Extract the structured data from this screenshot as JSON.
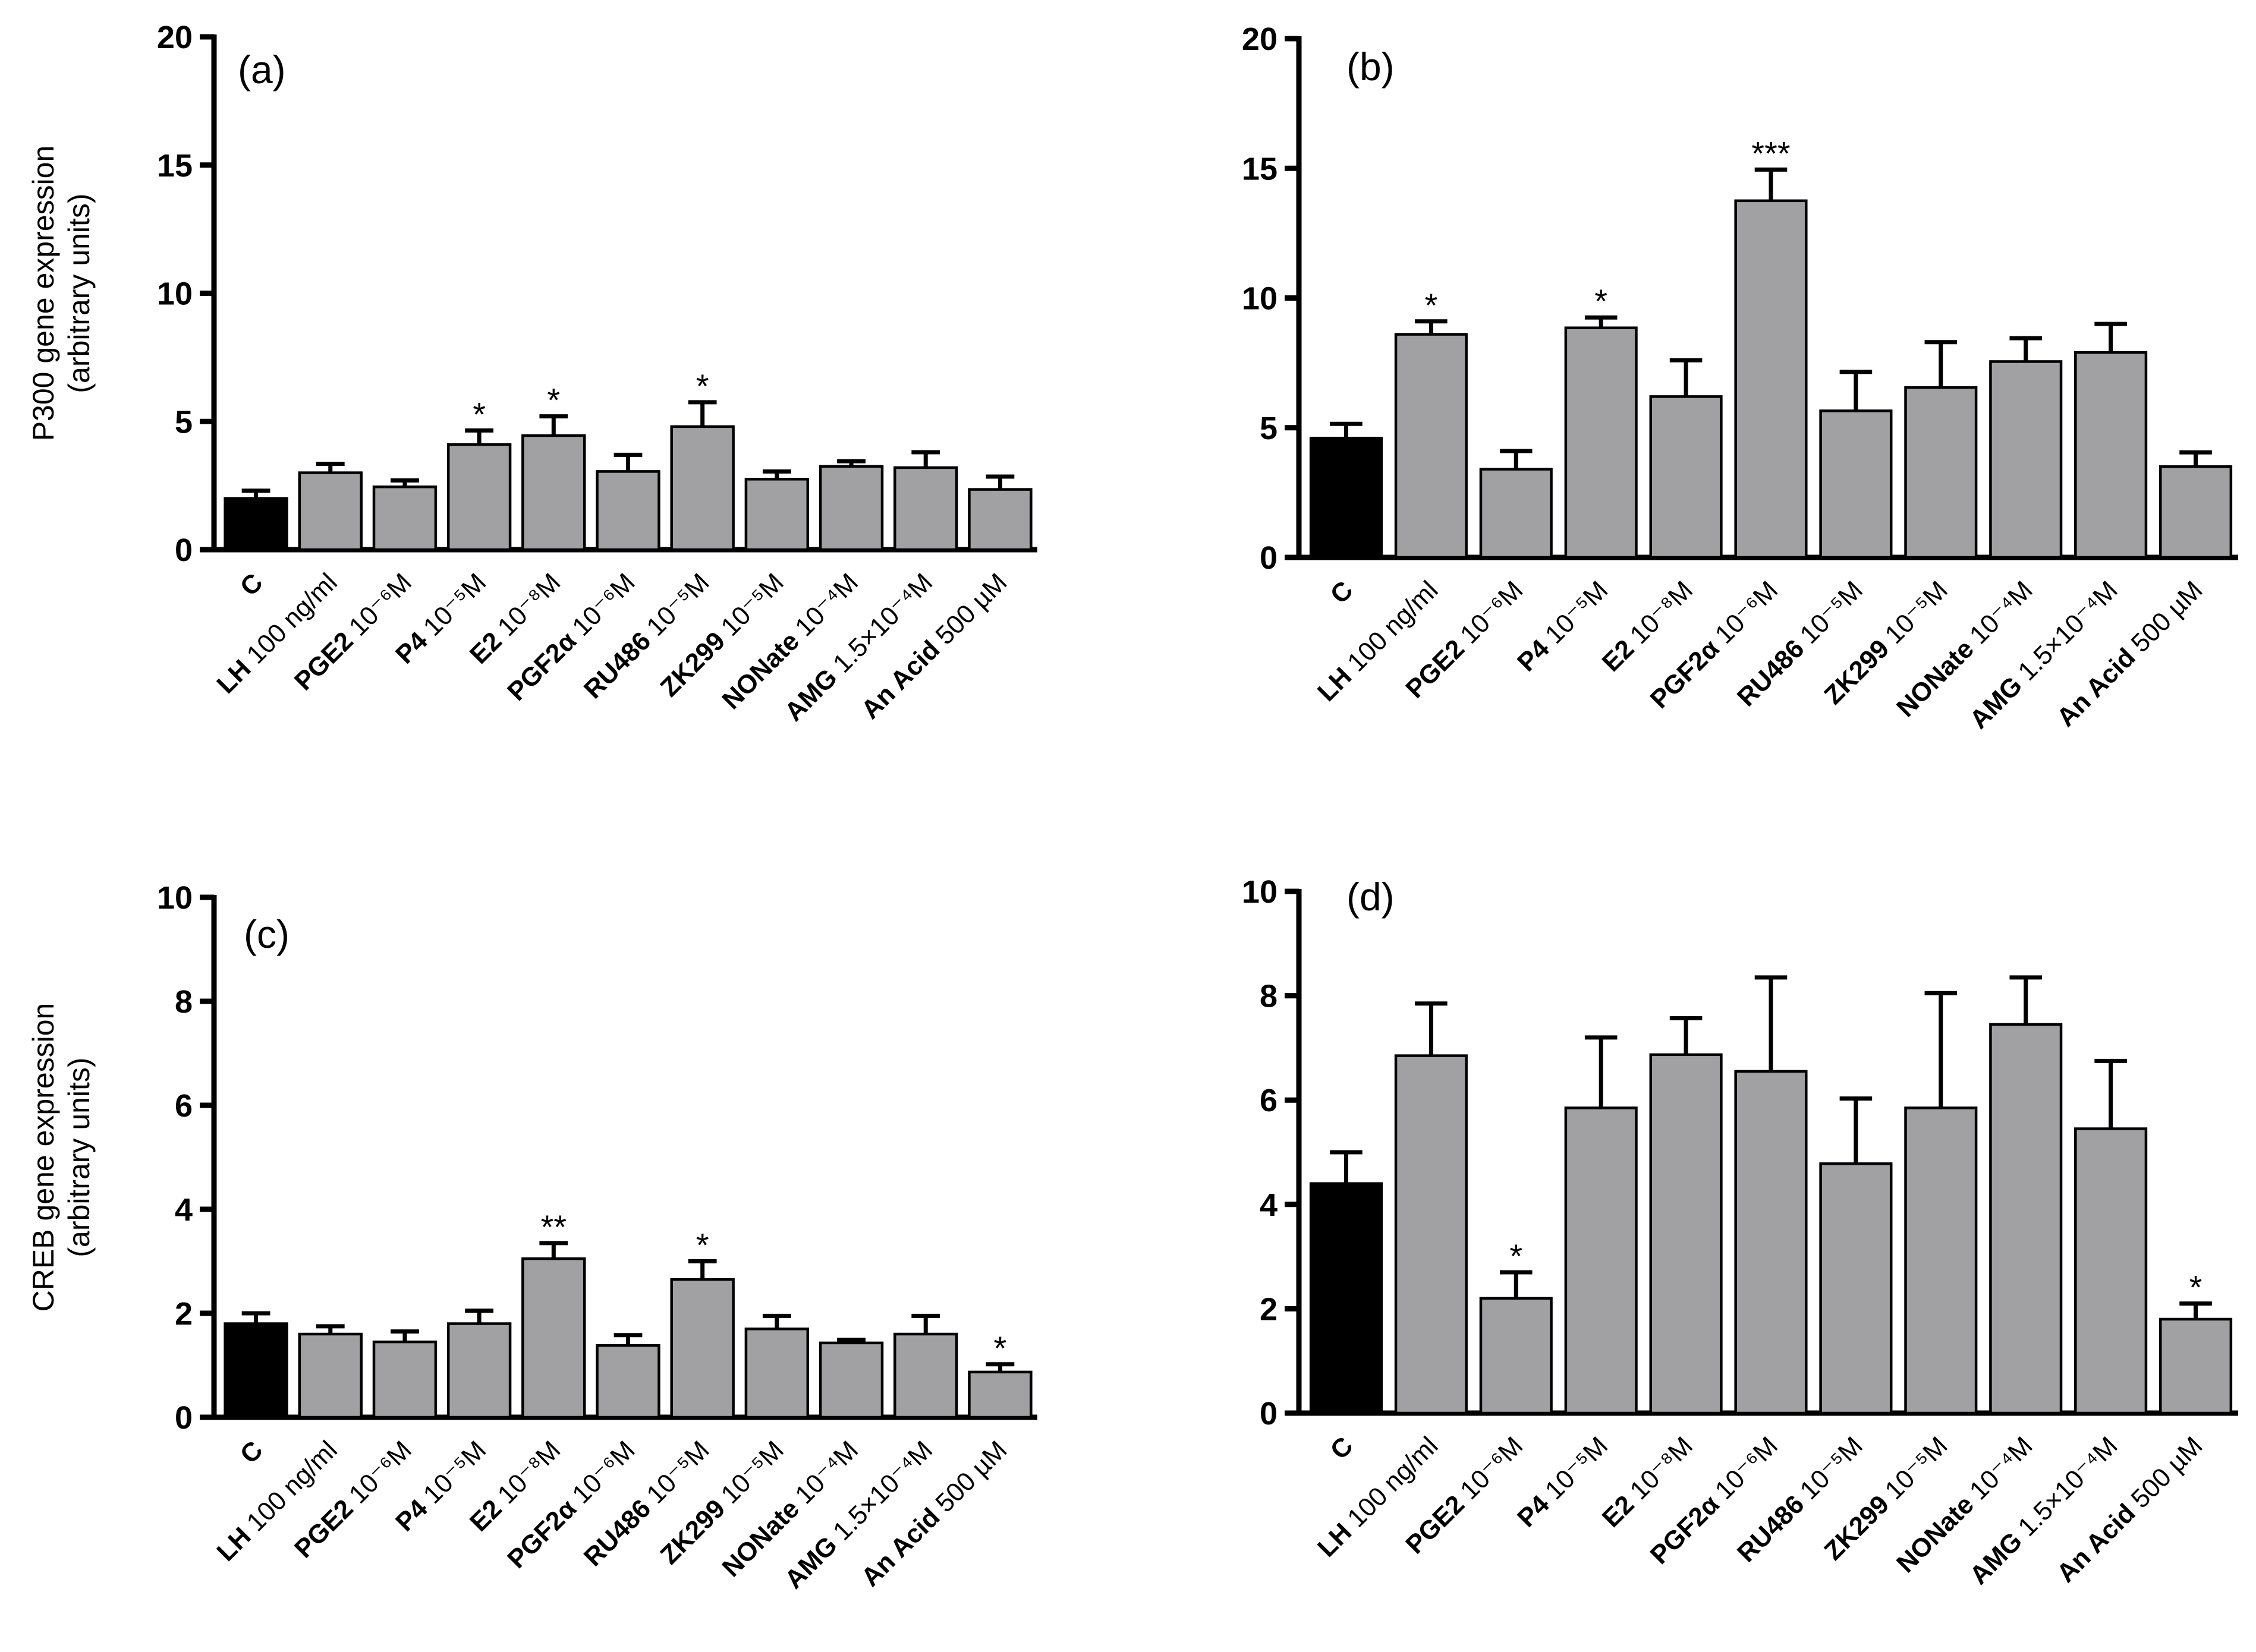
{
  "chart_data": [
    {
      "type": "bar",
      "panel_label": "(a)",
      "ylabel": [
        "P300 gene expression",
        "(arbitrary units)"
      ],
      "ylim": [
        0,
        20
      ],
      "yticks": [
        0,
        5,
        10,
        15,
        20
      ],
      "categories": [
        {
          "name": "C",
          "dose": ""
        },
        {
          "name": "LH",
          "dose": " 100 ng/ml"
        },
        {
          "name": "PGE2",
          "dose": " 10⁻⁶M"
        },
        {
          "name": "P4",
          "dose": " 10⁻⁵M"
        },
        {
          "name": "E2",
          "dose": " 10⁻⁸M"
        },
        {
          "name": "PGF2α",
          "dose": " 10⁻⁶M"
        },
        {
          "name": "RU486",
          "dose": " 10⁻⁵M"
        },
        {
          "name": "ZK299",
          "dose": " 10⁻⁵M"
        },
        {
          "name": "NONate",
          "dose": " 10⁻⁴M"
        },
        {
          "name": "AMG",
          "dose": " 1.5×10⁻⁴M"
        },
        {
          "name": "An Acid",
          "dose": " 500 µM"
        }
      ],
      "values": [
        2.0,
        3.0,
        2.45,
        4.1,
        4.45,
        3.05,
        4.8,
        2.75,
        3.25,
        3.2,
        2.35
      ],
      "errors": [
        0.3,
        0.35,
        0.25,
        0.55,
        0.75,
        0.65,
        0.95,
        0.3,
        0.2,
        0.6,
        0.5
      ],
      "significance": [
        "",
        "",
        "",
        "*",
        "*",
        "",
        "*",
        "",
        "",
        "",
        ""
      ],
      "colors": [
        "#000000",
        "#a1a1a3",
        "#a1a1a3",
        "#a1a1a3",
        "#a1a1a3",
        "#a1a1a3",
        "#a1a1a3",
        "#a1a1a3",
        "#a1a1a3",
        "#a1a1a3",
        "#a1a1a3"
      ]
    },
    {
      "type": "bar",
      "panel_label": "(b)",
      "ylabel": [],
      "ylim": [
        0,
        20
      ],
      "yticks": [
        0,
        5,
        10,
        15,
        20
      ],
      "categories": [
        {
          "name": "C",
          "dose": ""
        },
        {
          "name": "LH",
          "dose": " 100 ng/ml"
        },
        {
          "name": "PGE2",
          "dose": " 10⁻⁶M"
        },
        {
          "name": "P4",
          "dose": " 10⁻⁵M"
        },
        {
          "name": "E2",
          "dose": " 10⁻⁸M"
        },
        {
          "name": "PGF2α",
          "dose": " 10⁻⁶M"
        },
        {
          "name": "RU486",
          "dose": " 10⁻⁵M"
        },
        {
          "name": "ZK299",
          "dose": " 10⁻⁵M"
        },
        {
          "name": "NONate",
          "dose": " 10⁻⁴M"
        },
        {
          "name": "AMG",
          "dose": " 1.5×10⁻⁴M"
        },
        {
          "name": "An Acid",
          "dose": " 500 µM"
        }
      ],
      "values": [
        4.6,
        8.6,
        3.4,
        8.85,
        6.2,
        13.75,
        5.65,
        6.55,
        7.55,
        7.9,
        3.5
      ],
      "errors": [
        0.55,
        0.5,
        0.7,
        0.4,
        1.4,
        1.2,
        1.5,
        1.75,
        0.9,
        1.1,
        0.55
      ],
      "significance": [
        "",
        "*",
        "",
        "*",
        "",
        "***",
        "",
        "",
        "",
        "",
        ""
      ],
      "colors": [
        "#000000",
        "#a1a1a3",
        "#a1a1a3",
        "#a1a1a3",
        "#a1a1a3",
        "#a1a1a3",
        "#a1a1a3",
        "#a1a1a3",
        "#a1a1a3",
        "#a1a1a3",
        "#a1a1a3"
      ]
    },
    {
      "type": "bar",
      "panel_label": "(c)",
      "ylabel": [
        "CREB gene expression",
        "(arbitrary units)"
      ],
      "ylim": [
        0,
        10
      ],
      "yticks": [
        0,
        2,
        4,
        6,
        8,
        10
      ],
      "categories": [
        {
          "name": "C",
          "dose": ""
        },
        {
          "name": "LH",
          "dose": " 100 ng/ml"
        },
        {
          "name": "PGE2",
          "dose": " 10⁻⁶M"
        },
        {
          "name": "P4",
          "dose": " 10⁻⁵M"
        },
        {
          "name": "E2",
          "dose": " 10⁻⁸M"
        },
        {
          "name": "PGF2α",
          "dose": " 10⁻⁶M"
        },
        {
          "name": "RU486",
          "dose": " 10⁻⁵M"
        },
        {
          "name": "ZK299",
          "dose": " 10⁻⁵M"
        },
        {
          "name": "NONate",
          "dose": " 10⁻⁴M"
        },
        {
          "name": "AMG",
          "dose": " 1.5×10⁻⁴M"
        },
        {
          "name": "An Acid",
          "dose": " 500 µM"
        }
      ],
      "values": [
        1.8,
        1.6,
        1.45,
        1.8,
        3.05,
        1.38,
        2.65,
        1.7,
        1.43,
        1.6,
        0.87
      ],
      "errors": [
        0.2,
        0.15,
        0.2,
        0.25,
        0.3,
        0.2,
        0.35,
        0.25,
        0.06,
        0.35,
        0.15
      ],
      "significance": [
        "",
        "",
        "",
        "",
        "**",
        "",
        "*",
        "",
        "",
        "",
        "*"
      ],
      "colors": [
        "#000000",
        "#a1a1a3",
        "#a1a1a3",
        "#a1a1a3",
        "#a1a1a3",
        "#a1a1a3",
        "#a1a1a3",
        "#a1a1a3",
        "#a1a1a3",
        "#a1a1a3",
        "#a1a1a3"
      ]
    },
    {
      "type": "bar",
      "panel_label": "(d)",
      "ylabel": [],
      "ylim": [
        0,
        10
      ],
      "yticks": [
        0,
        2,
        4,
        6,
        8,
        10
      ],
      "categories": [
        {
          "name": "C",
          "dose": ""
        },
        {
          "name": "LH",
          "dose": " 100 ng/ml"
        },
        {
          "name": "PGE2",
          "dose": " 10⁻⁶M"
        },
        {
          "name": "P4",
          "dose": " 10⁻⁵M"
        },
        {
          "name": "E2",
          "dose": " 10⁻⁸M"
        },
        {
          "name": "PGF2α",
          "dose": " 10⁻⁶M"
        },
        {
          "name": "RU486",
          "dose": " 10⁻⁵M"
        },
        {
          "name": "ZK299",
          "dose": " 10⁻⁵M"
        },
        {
          "name": "NONate",
          "dose": " 10⁻⁴M"
        },
        {
          "name": "AMG",
          "dose": " 1.5×10⁻⁴M"
        },
        {
          "name": "An Acid",
          "dose": " 500 µM"
        }
      ],
      "values": [
        4.4,
        6.85,
        2.2,
        5.85,
        6.87,
        6.55,
        4.78,
        5.85,
        7.45,
        5.45,
        1.8
      ],
      "errors": [
        0.6,
        1.0,
        0.5,
        1.35,
        0.7,
        1.8,
        1.25,
        2.2,
        0.9,
        1.3,
        0.3
      ],
      "significance": [
        "",
        "",
        "*",
        "",
        "",
        "",
        "",
        "",
        "",
        "",
        "*"
      ],
      "colors": [
        "#000000",
        "#a1a1a3",
        "#a1a1a3",
        "#a1a1a3",
        "#a1a1a3",
        "#a1a1a3",
        "#a1a1a3",
        "#a1a1a3",
        "#a1a1a3",
        "#a1a1a3",
        "#a1a1a3"
      ]
    }
  ]
}
